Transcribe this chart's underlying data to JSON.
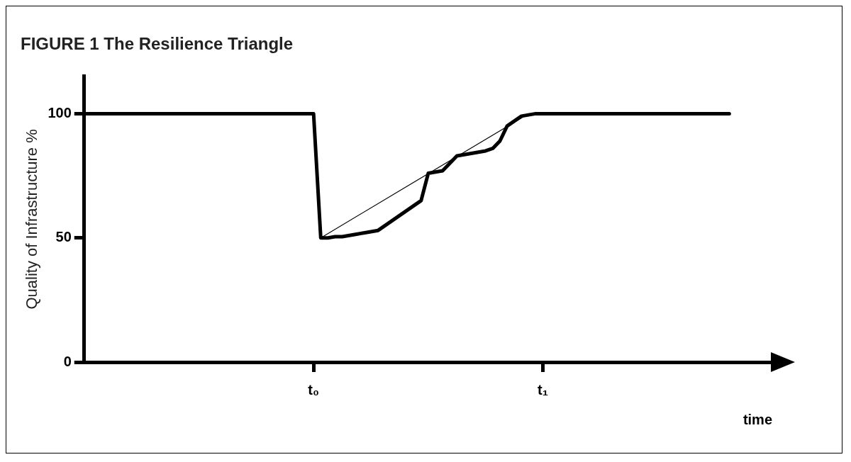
{
  "chart_data": {
    "type": "line",
    "title": "FIGURE 1 The Resilience Triangle",
    "ylabel": "Quality of Infrastructure %",
    "xlabel": "time",
    "categories": [
      null,
      null,
      null,
      null,
      null,
      null,
      null,
      null,
      null,
      null,
      null,
      null,
      null,
      null,
      null,
      null,
      null,
      null,
      null,
      null,
      null,
      null,
      null,
      null,
      null,
      null,
      null,
      null,
      null,
      null,
      null,
      null,
      "t₀",
      null,
      null,
      null,
      null,
      null,
      null,
      null,
      null,
      null,
      null,
      null,
      null,
      null,
      null,
      null,
      null,
      null,
      null,
      null,
      null,
      null,
      null,
      null,
      null,
      null,
      null,
      null,
      null,
      null,
      null,
      null,
      "t₁",
      null,
      null,
      null,
      null,
      null,
      null,
      null,
      null,
      null,
      null,
      null,
      null,
      null,
      null,
      null,
      null,
      null,
      null,
      null,
      null,
      null,
      null,
      null,
      null,
      null,
      null,
      null,
      null,
      null,
      null,
      null,
      null
    ],
    "ylim": [
      0,
      115
    ],
    "yticks": [
      0,
      50,
      100
    ],
    "grid": false,
    "legend": false,
    "marker": "none",
    "series": [
      {
        "color": "#000000",
        "values": [
          100,
          100,
          100,
          100,
          100,
          100,
          100,
          100,
          100,
          100,
          100,
          100,
          100,
          100,
          100,
          100,
          100,
          100,
          100,
          100,
          100,
          100,
          100,
          100,
          100,
          100,
          100,
          100,
          100,
          100,
          100,
          100,
          100,
          50,
          50,
          50.5,
          50.5,
          51,
          51.5,
          52,
          52.5,
          53,
          55,
          57,
          59,
          61,
          63,
          65,
          76,
          76.5,
          77,
          80,
          83,
          83.5,
          84,
          84.5,
          85,
          86,
          89,
          95,
          97,
          99,
          99.5,
          100,
          100,
          100,
          100,
          100,
          100,
          100,
          100,
          100,
          100,
          100,
          100,
          100,
          100,
          100,
          100,
          100,
          100,
          100,
          100,
          100,
          100,
          100,
          100,
          100,
          100,
          100,
          100,
          null,
          null,
          null,
          null,
          null,
          null
        ]
      },
      {
        "color": "#000000",
        "values": [
          null,
          null,
          null,
          null,
          null,
          null,
          null,
          null,
          null,
          null,
          null,
          null,
          null,
          null,
          null,
          null,
          null,
          null,
          null,
          null,
          null,
          null,
          null,
          null,
          null,
          null,
          null,
          null,
          null,
          null,
          null,
          null,
          null,
          50,
          null,
          null,
          null,
          null,
          null,
          null,
          null,
          null,
          null,
          null,
          null,
          null,
          null,
          null,
          null,
          null,
          null,
          null,
          null,
          null,
          null,
          null,
          null,
          null,
          null,
          null,
          null,
          null,
          100,
          null,
          null,
          null,
          null,
          null,
          null,
          null,
          null,
          null,
          null,
          null,
          null,
          null,
          null,
          null,
          null,
          null,
          null,
          null,
          null,
          null,
          null,
          null,
          null,
          null,
          null,
          null,
          null,
          null,
          null,
          null,
          null,
          null,
          null
        ]
      }
    ]
  }
}
